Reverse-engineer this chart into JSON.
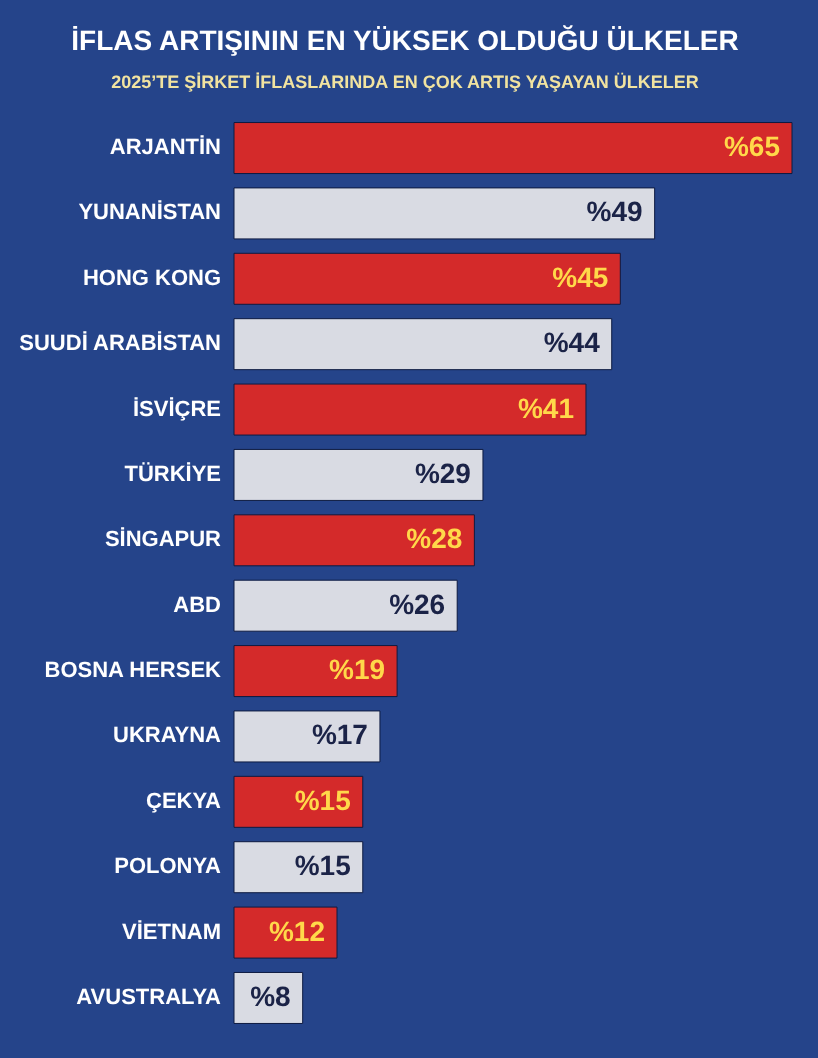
{
  "chart_data": {
    "type": "bar",
    "orientation": "horizontal",
    "title": "İFLAS ARTIŞININ EN YÜKSEK OLDUĞU ÜLKELER",
    "subtitle": "2025’TE ŞİRKET İFLASLARINDA EN ÇOK ARTIŞ YAŞAYAN ÜLKELER",
    "categories": [
      "ARJANTİN",
      "YUNANİSTAN",
      "HONG KONG",
      "SUUDİ ARABİSTAN",
      "İSVİÇRE",
      "TÜRKİYE",
      "SİNGAPUR",
      "ABD",
      "BOSNA HERSEK",
      "UKRAYNA",
      "ÇEKYA",
      "POLONYA",
      "VİETNAM",
      "AVUSTRALYA"
    ],
    "values": [
      65,
      49,
      45,
      44,
      41,
      29,
      28,
      26,
      19,
      17,
      15,
      15,
      12,
      8
    ],
    "colors": [
      "#d42a2a",
      "#d9dbe3",
      "#d42a2a",
      "#d9dbe3",
      "#d42a2a",
      "#d9dbe3",
      "#d42a2a",
      "#d9dbe3",
      "#d42a2a",
      "#d9dbe3",
      "#d42a2a",
      "#d9dbe3",
      "#d42a2a",
      "#d9dbe3"
    ],
    "value_labels": [
      "%65",
      "%49",
      "%45",
      "%44",
      "%41",
      "%29",
      "%28",
      "%26",
      "%19",
      "%17",
      "%15",
      "%15",
      "%12",
      "%8"
    ]
  }
}
